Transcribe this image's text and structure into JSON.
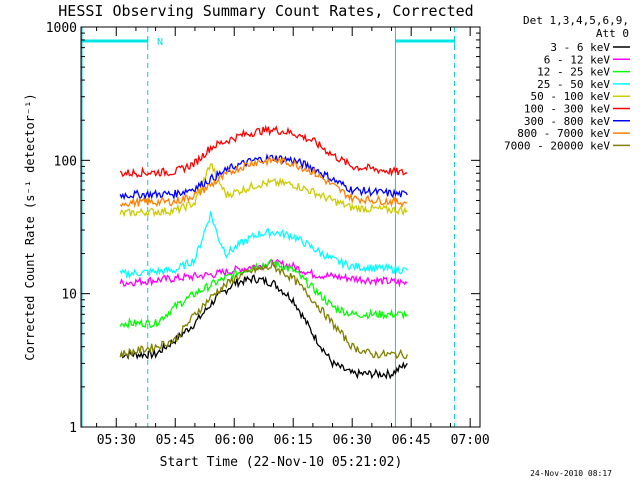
{
  "chart_data": {
    "type": "line",
    "title": "HESSI Observing Summary Count Rates, Corrected",
    "xlabel": "Start Time (22-Nov-10 05:21:02)",
    "ylabel": "Corrected Count Rate (s⁻¹ detector⁻¹)",
    "y_scale": "log",
    "ylim": [
      1,
      1000
    ],
    "y_ticks": [
      "1",
      "10",
      "100",
      "1000"
    ],
    "x_ticks": [
      "05:30",
      "05:45",
      "06:00",
      "06:15",
      "06:30",
      "06:45",
      "07:00"
    ],
    "legend_header": [
      "Det 1,3,4,5,6,9,",
      "Att 0"
    ],
    "legend_position": "right, outside plot",
    "footer_timestamp": "24-Nov-2010 08:17",
    "annotation_N": "N",
    "night_bars": [
      {
        "from": "05:21",
        "to": "05:38"
      },
      {
        "from": "06:41",
        "to": "06:56"
      }
    ],
    "x_unit": "time (HH:MM)",
    "x_data_range": [
      "05:31",
      "06:45"
    ],
    "series": [
      {
        "name": "3 - 6 keV",
        "color": "#000000",
        "x": [
          "05:31",
          "05:40",
          "05:45",
          "05:50",
          "05:55",
          "06:00",
          "06:05",
          "06:10",
          "06:15",
          "06:20",
          "06:25",
          "06:30",
          "06:35",
          "06:40",
          "06:44"
        ],
        "y": [
          3.5,
          3.5,
          4.5,
          6,
          9,
          12,
          13,
          12,
          9,
          5,
          3,
          2.5,
          2.5,
          2.5,
          3
        ]
      },
      {
        "name": "6 - 12 keV",
        "color": "#ff00ff",
        "x": [
          "05:31",
          "05:45",
          "05:55",
          "06:00",
          "06:05",
          "06:10",
          "06:15",
          "06:20",
          "06:30",
          "06:44"
        ],
        "y": [
          12,
          13,
          14,
          15,
          16,
          17,
          16,
          14,
          13,
          12
        ]
      },
      {
        "name": "12 - 25 keV",
        "color": "#00ff00",
        "x": [
          "05:31",
          "05:40",
          "05:45",
          "05:50",
          "05:55",
          "06:00",
          "06:05",
          "06:10",
          "06:15",
          "06:20",
          "06:25",
          "06:30",
          "06:35",
          "06:40",
          "06:44"
        ],
        "y": [
          6,
          6,
          8,
          10,
          12,
          14,
          16,
          17,
          15,
          11,
          8,
          7,
          7,
          7,
          7
        ]
      },
      {
        "name": "25 - 50 keV",
        "color": "#00ffff",
        "x": [
          "05:31",
          "05:45",
          "05:50",
          "05:54",
          "05:56",
          "05:58",
          "06:02",
          "06:06",
          "06:10",
          "06:15",
          "06:20",
          "06:25",
          "06:30",
          "06:44"
        ],
        "y": [
          14,
          15,
          18,
          40,
          26,
          20,
          24,
          28,
          29,
          27,
          22,
          18,
          16,
          15
        ]
      },
      {
        "name": "50 - 100 keV",
        "color": "#cccc00",
        "x": [
          "05:31",
          "05:45",
          "05:50",
          "05:54",
          "05:56",
          "05:58",
          "06:02",
          "06:06",
          "06:10",
          "06:15",
          "06:20",
          "06:25",
          "06:30",
          "06:44"
        ],
        "y": [
          40,
          42,
          48,
          95,
          70,
          55,
          60,
          66,
          68,
          66,
          58,
          50,
          44,
          42
        ]
      },
      {
        "name": "100 - 300 keV",
        "color": "#ff0000",
        "x": [
          "05:31",
          "05:45",
          "05:50",
          "05:54",
          "05:58",
          "06:02",
          "06:06",
          "06:10",
          "06:15",
          "06:20",
          "06:25",
          "06:30",
          "06:44"
        ],
        "y": [
          80,
          82,
          95,
          125,
          140,
          155,
          165,
          170,
          160,
          140,
          110,
          90,
          80
        ]
      },
      {
        "name": "300 - 800 keV",
        "color": "#0000ff",
        "x": [
          "05:31",
          "05:45",
          "05:50",
          "05:55",
          "06:00",
          "06:05",
          "06:10",
          "06:15",
          "06:20",
          "06:25",
          "06:30",
          "06:44"
        ],
        "y": [
          55,
          56,
          62,
          75,
          90,
          100,
          105,
          100,
          88,
          72,
          60,
          55
        ]
      },
      {
        "name": "800 - 7000 keV",
        "color": "#ff8000",
        "x": [
          "05:31",
          "05:45",
          "05:50",
          "05:55",
          "06:00",
          "06:05",
          "06:10",
          "06:15",
          "06:20",
          "06:25",
          "06:30",
          "06:44"
        ],
        "y": [
          48,
          49,
          55,
          68,
          85,
          97,
          100,
          95,
          82,
          65,
          52,
          48
        ]
      },
      {
        "name": "7000 - 20000 keV",
        "color": "#808000",
        "x": [
          "05:31",
          "05:40",
          "05:45",
          "05:50",
          "05:55",
          "06:00",
          "06:05",
          "06:10",
          "06:15",
          "06:20",
          "06:25",
          "06:30",
          "06:35",
          "06:40",
          "06:44"
        ],
        "y": [
          3.5,
          4,
          4.5,
          7,
          10,
          13,
          15,
          16,
          13,
          9,
          6,
          4,
          3.5,
          3.5,
          3.5
        ]
      }
    ]
  }
}
